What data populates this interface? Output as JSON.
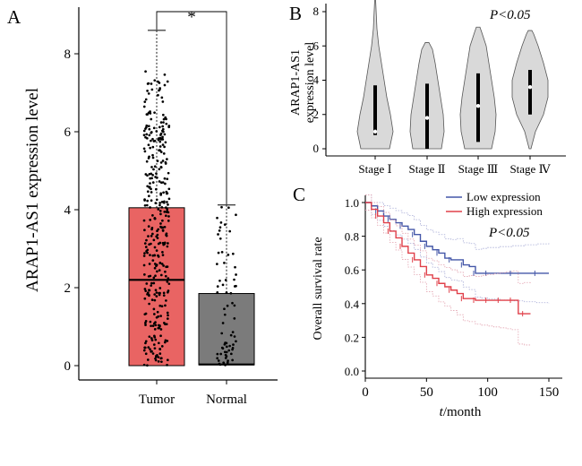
{
  "figure": {
    "panels": [
      "A",
      "B",
      "C"
    ]
  },
  "chart_data": [
    {
      "panel": "A",
      "type": "box",
      "ylabel": "ARAP1-AS1 expression level",
      "categories": [
        "Tumor",
        "Normal"
      ],
      "yticks": [
        "0",
        "2",
        "4",
        "6",
        "8"
      ],
      "ylim": [
        0,
        8.9
      ],
      "significance": "*",
      "colors": {
        "Tumor": "#e96463",
        "Normal": "#7b7b7b"
      },
      "boxes": [
        {
          "name": "Tumor",
          "min": 0.0,
          "q1": 0.0,
          "median": 2.2,
          "q3": 4.05,
          "max": 8.6
        },
        {
          "name": "Normal",
          "min": 0.0,
          "q1": 0.02,
          "median": 0.03,
          "q3": 1.85,
          "max": 4.12
        }
      ]
    },
    {
      "panel": "B",
      "type": "violin",
      "ylabel": "ARAP1-AS1 expression level",
      "categories": [
        "Stage Ⅰ",
        "Stage Ⅱ",
        "Stage Ⅲ",
        "Stage Ⅳ"
      ],
      "yticks": [
        "0",
        "2",
        "4",
        "6",
        "8"
      ],
      "ylim": [
        -0.4,
        8.6
      ],
      "pvalue_label": "P<0.05",
      "violin_color": "#d9d9d9",
      "violins": [
        {
          "stage": "Stage Ⅰ",
          "max": 8.7,
          "q1": 0.8,
          "median": 1.0,
          "q3": 3.7
        },
        {
          "stage": "Stage Ⅱ",
          "max": 6.2,
          "q1": 0.0,
          "median": 1.8,
          "q3": 3.8
        },
        {
          "stage": "Stage Ⅲ",
          "max": 7.1,
          "q1": 0.4,
          "median": 2.5,
          "q3": 4.4
        },
        {
          "stage": "Stage Ⅳ",
          "max": 6.9,
          "q1": 2.0,
          "median": 3.6,
          "q3": 4.6
        }
      ]
    },
    {
      "panel": "C",
      "type": "line",
      "ylabel": "Overall survival rate",
      "xlabel_italic": "t",
      "xlabel_rest": "/month",
      "xticks": [
        "0",
        "50",
        "100",
        "150"
      ],
      "yticks": [
        "0.0",
        "0.2",
        "0.4",
        "0.6",
        "0.8",
        "1.0"
      ],
      "xlim": [
        0,
        155
      ],
      "ylim": [
        0,
        1.02
      ],
      "pvalue_label": "P<0.05",
      "series": [
        {
          "name": "Low expression",
          "color": "#4457a8",
          "x": [
            0,
            5,
            10,
            15,
            20,
            25,
            30,
            35,
            40,
            45,
            50,
            55,
            60,
            65,
            70,
            75,
            80,
            85,
            90,
            95,
            100,
            110,
            120,
            130,
            140,
            150
          ],
          "y": [
            1.0,
            0.98,
            0.95,
            0.92,
            0.9,
            0.88,
            0.86,
            0.84,
            0.81,
            0.77,
            0.74,
            0.72,
            0.7,
            0.67,
            0.66,
            0.66,
            0.63,
            0.62,
            0.58,
            0.58,
            0.58,
            0.58,
            0.58,
            0.58,
            0.58,
            0.58
          ]
        },
        {
          "name": "High expression",
          "color": "#e0404a",
          "x": [
            0,
            5,
            10,
            15,
            20,
            25,
            30,
            35,
            40,
            45,
            50,
            55,
            60,
            65,
            70,
            75,
            80,
            85,
            90,
            95,
            100,
            105,
            110,
            115,
            120,
            125,
            130,
            135
          ],
          "y": [
            1.0,
            0.96,
            0.92,
            0.88,
            0.83,
            0.79,
            0.74,
            0.7,
            0.66,
            0.62,
            0.57,
            0.55,
            0.52,
            0.5,
            0.48,
            0.46,
            0.43,
            0.43,
            0.42,
            0.42,
            0.42,
            0.42,
            0.42,
            0.42,
            0.42,
            0.34,
            0.34,
            0.34
          ]
        }
      ]
    }
  ]
}
